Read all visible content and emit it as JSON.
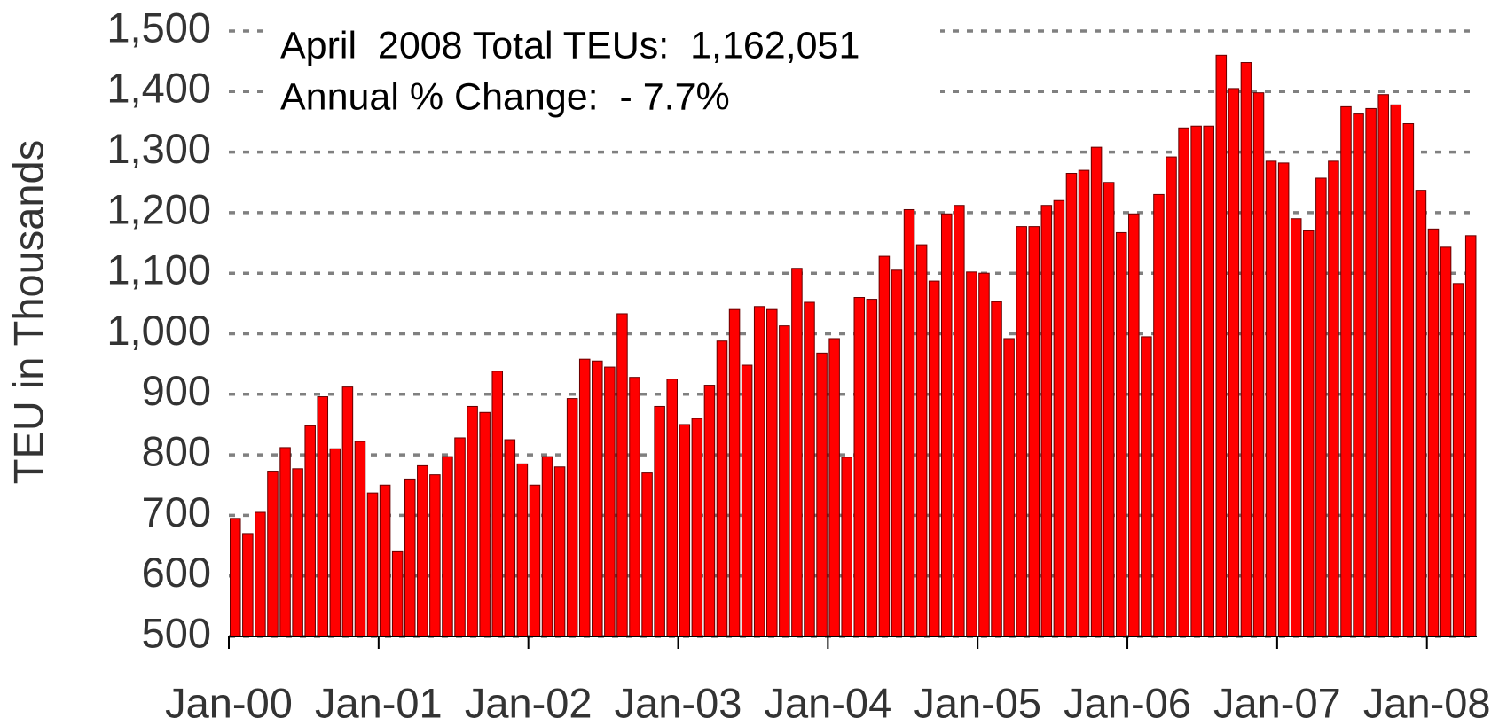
{
  "chart_data": {
    "type": "bar",
    "y_axis_label": "TEU in Thousands",
    "annotations": [
      "April  2008 Total TEUs:  1,162,051",
      "Annual % Change:  - 7.7%"
    ],
    "categories": [
      "Jan-00",
      null,
      null,
      null,
      null,
      null,
      null,
      null,
      null,
      null,
      null,
      null,
      "Jan-01",
      null,
      null,
      null,
      null,
      null,
      null,
      null,
      null,
      null,
      null,
      null,
      "Jan-02",
      null,
      null,
      null,
      null,
      null,
      null,
      null,
      null,
      null,
      null,
      null,
      "Jan-03",
      null,
      null,
      null,
      null,
      null,
      null,
      null,
      null,
      null,
      null,
      null,
      "Jan-04",
      null,
      null,
      null,
      null,
      null,
      null,
      null,
      null,
      null,
      null,
      null,
      "Jan-05",
      null,
      null,
      null,
      null,
      null,
      null,
      null,
      null,
      null,
      null,
      null,
      "Jan-06",
      null,
      null,
      null,
      null,
      null,
      null,
      null,
      null,
      null,
      null,
      null,
      "Jan-07",
      null,
      null,
      null,
      null,
      null,
      null,
      null,
      null,
      null,
      null,
      null,
      "Jan-08",
      null,
      null,
      null
    ],
    "values": [
      695,
      670,
      705,
      773,
      812,
      777,
      848,
      896,
      810,
      912,
      822,
      737,
      750,
      640,
      760,
      782,
      767,
      797,
      828,
      880,
      870,
      938,
      825,
      785,
      750,
      797,
      780,
      893,
      958,
      955,
      945,
      1033,
      928,
      770,
      880,
      925,
      850,
      860,
      915,
      988,
      1040,
      948,
      1045,
      1040,
      1013,
      1108,
      1052,
      968,
      992,
      796,
      1060,
      1057,
      1128,
      1105,
      1205,
      1147,
      1087,
      1198,
      1212,
      1102,
      1100,
      1053,
      992,
      1177,
      1177,
      1212,
      1220,
      1265,
      1270,
      1308,
      1250,
      1167,
      1198,
      995,
      1230,
      1292,
      1340,
      1343,
      1343,
      1460,
      1405,
      1448,
      1398,
      1285,
      1282,
      1190,
      1170,
      1257,
      1285,
      1375,
      1363,
      1372,
      1395,
      1378,
      1347,
      1237,
      1173,
      1143,
      1083,
      1162.051
    ],
    "color": "#ff0000",
    "ylim": [
      500,
      1500
    ],
    "yticks": [
      500,
      600,
      700,
      800,
      900,
      {
        "value": 1000,
        "label": "1,000"
      },
      {
        "value": 1100,
        "label": "1,100"
      },
      {
        "value": 1200,
        "label": "1,200"
      },
      {
        "value": 1300,
        "label": "1,300"
      },
      {
        "value": 1400,
        "label": "1,400"
      },
      {
        "value": 1500,
        "label": "1,500"
      }
    ],
    "grid": true
  }
}
